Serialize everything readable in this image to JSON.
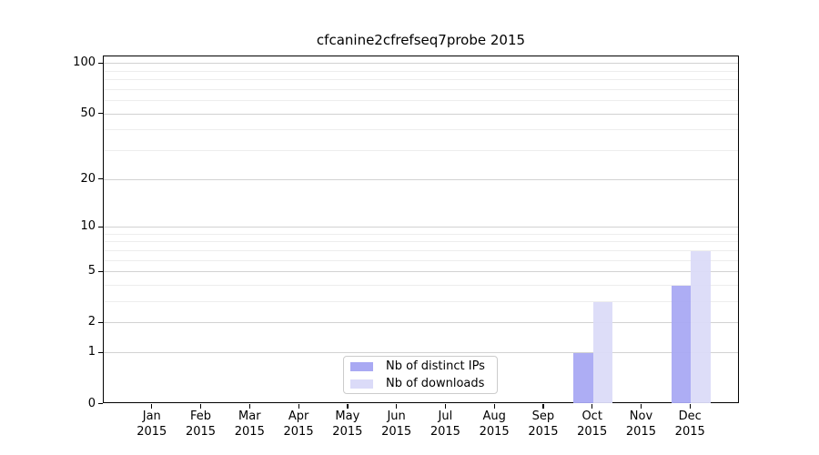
{
  "chart_data": {
    "type": "bar",
    "title": "cfcanine2cfrefseq7probe 2015",
    "year_label": "2015",
    "categories": [
      "Jan",
      "Feb",
      "Mar",
      "Apr",
      "May",
      "Jun",
      "Jul",
      "Aug",
      "Sep",
      "Oct",
      "Nov",
      "Dec"
    ],
    "series": [
      {
        "name": "Nb of distinct IPs",
        "color": "#a9a9f3",
        "values": [
          0,
          0,
          0,
          0,
          0,
          0,
          0,
          0,
          0,
          1,
          0,
          4
        ]
      },
      {
        "name": "Nb of downloads",
        "color": "#dbdbf8",
        "values": [
          0,
          0,
          0,
          0,
          0,
          0,
          0,
          0,
          0,
          3,
          0,
          7
        ]
      }
    ],
    "y_axis": {
      "scale": "log10(1+v)",
      "tick_values": [
        0,
        1,
        2,
        5,
        10,
        20,
        50,
        100
      ],
      "tick_labels": [
        "0",
        "1",
        "2",
        "5",
        "10",
        "20",
        "50",
        "100"
      ],
      "minor_gridline_values": [
        3,
        4,
        6,
        7,
        8,
        9,
        30,
        40,
        60,
        70,
        80,
        90
      ],
      "range_top_value": 110
    },
    "grid": true,
    "legend_position": "bottom-center",
    "colors": {
      "axis": "#000000",
      "major_grid": "#d2d2d2",
      "minor_grid": "#ededed",
      "background": "#ffffff"
    }
  }
}
